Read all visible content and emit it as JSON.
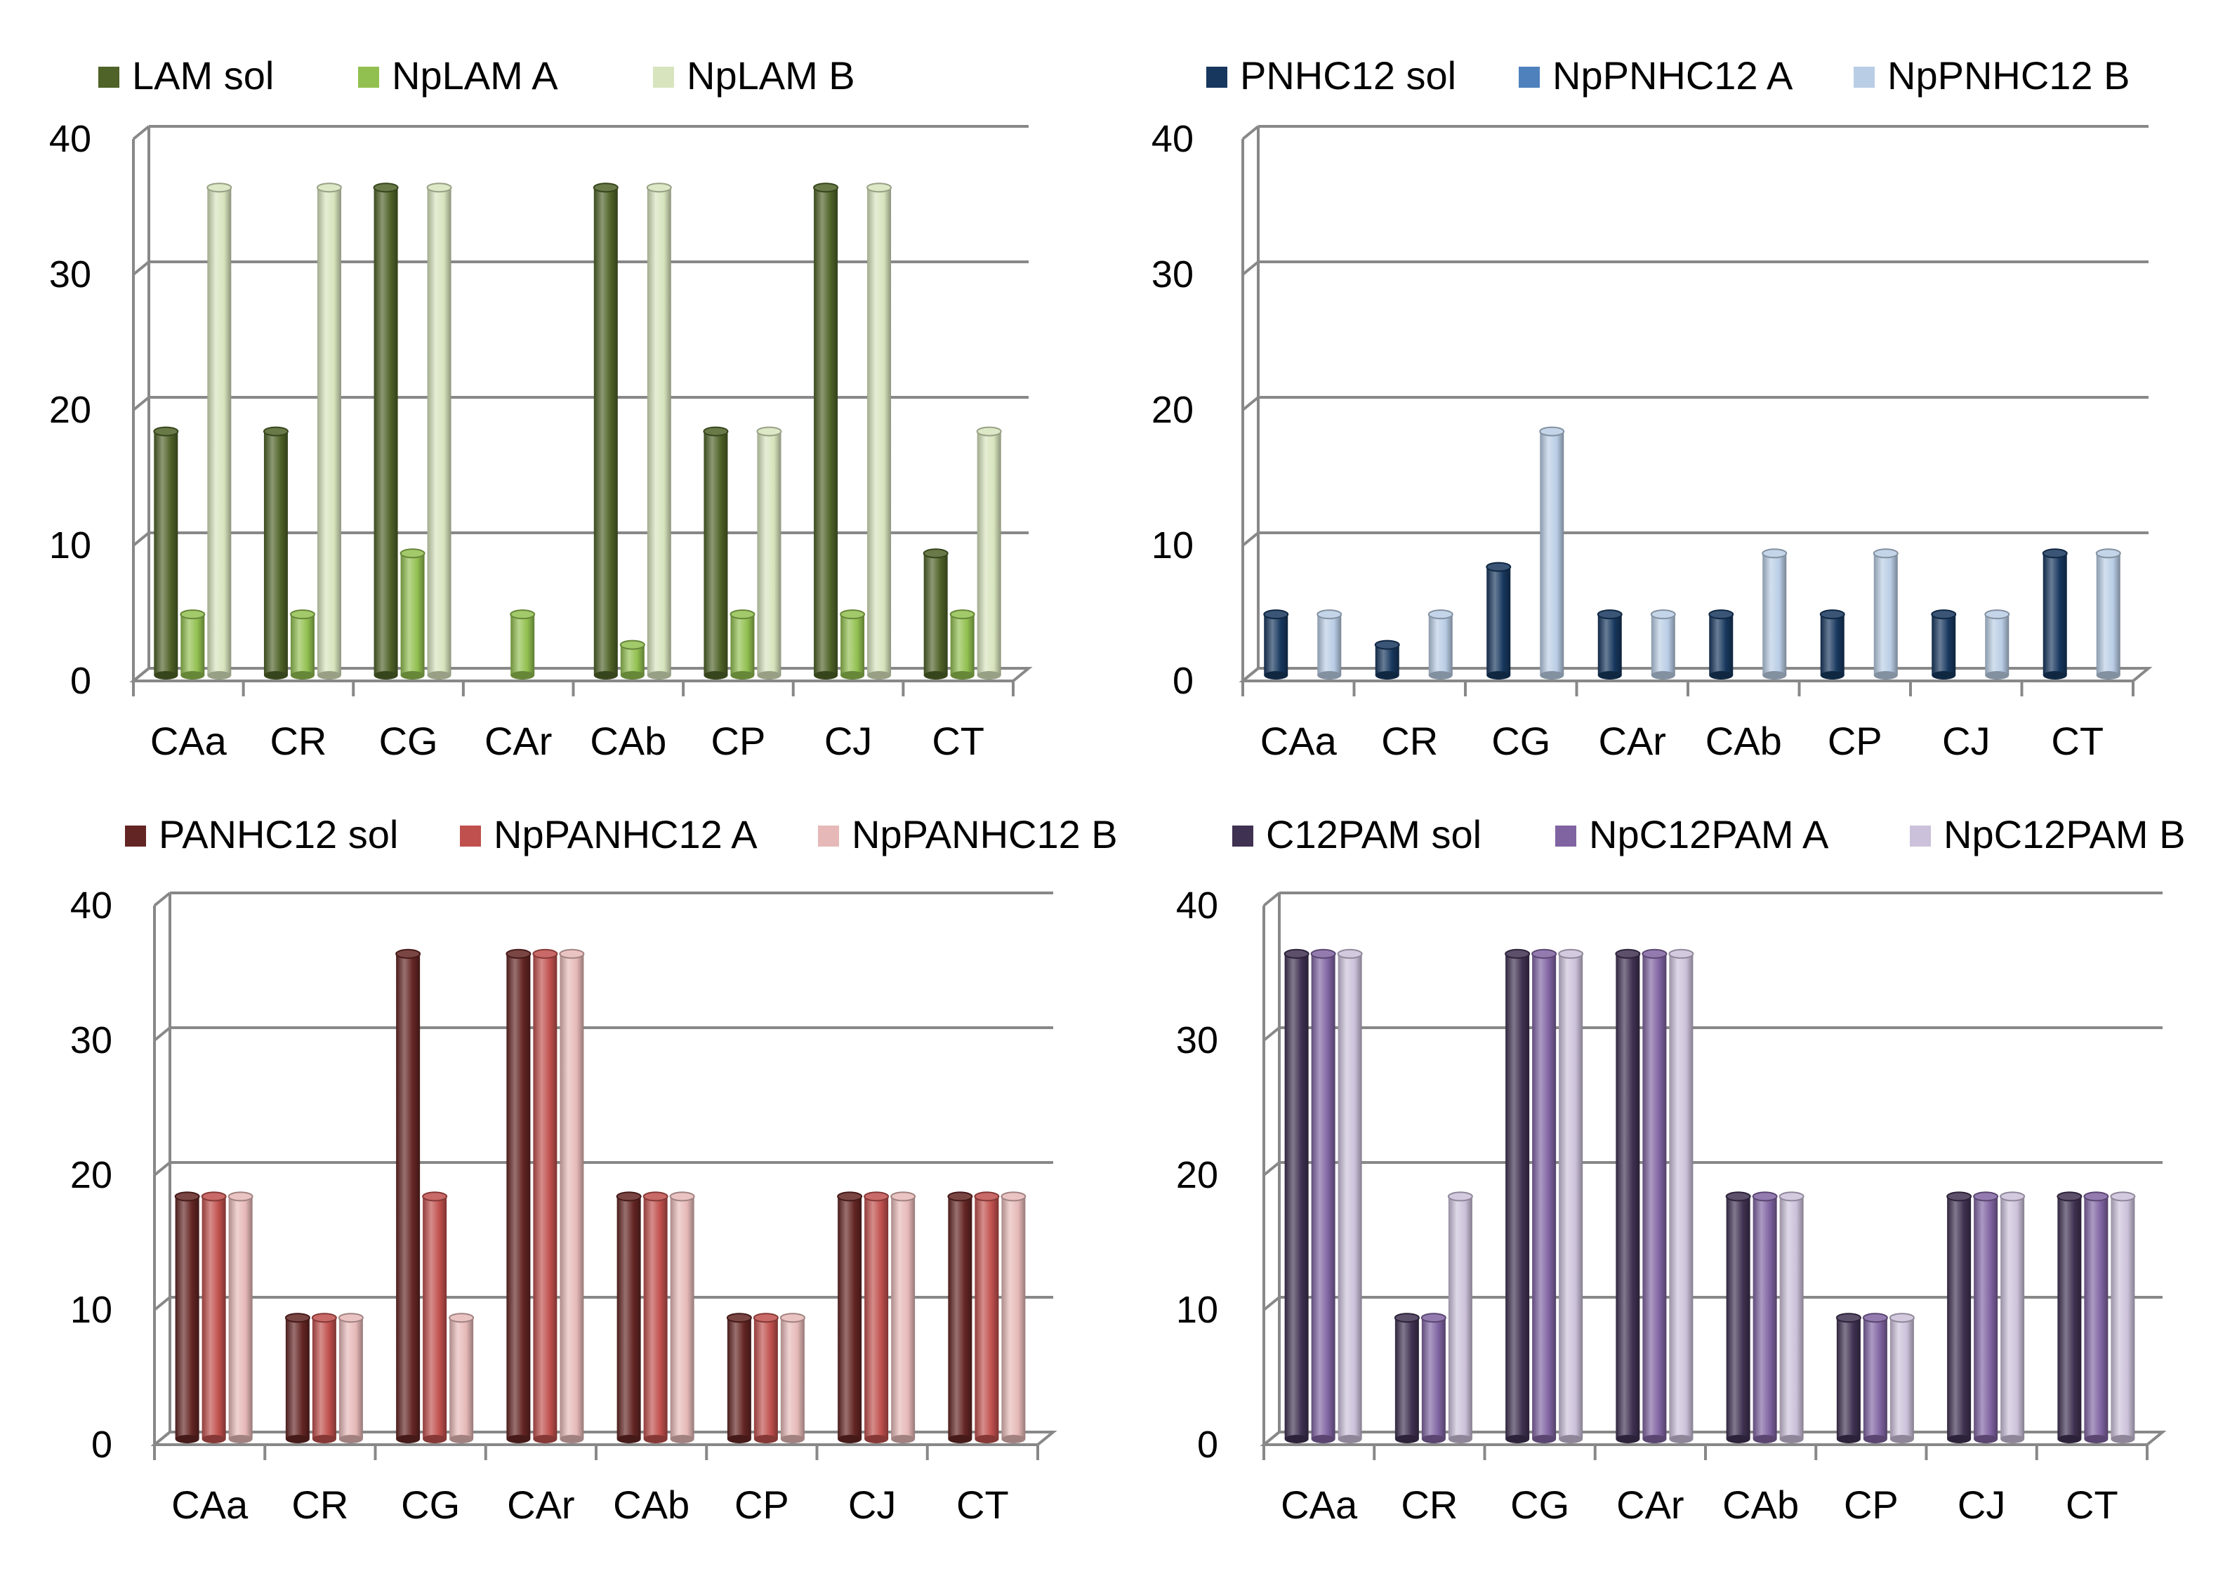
{
  "chart_data": [
    {
      "type": "bar",
      "title": "",
      "xlabel": "",
      "ylabel": "",
      "ylim": [
        0,
        40
      ],
      "yticks": [
        "0",
        "10",
        "20",
        "30",
        "40"
      ],
      "grid": true,
      "legend": "top",
      "categories": [
        "CAa",
        "CR",
        "CG",
        "CAr",
        "CAb",
        "CP",
        "CJ",
        "CT"
      ],
      "series": [
        {
          "name": "LAM sol",
          "color": "#4f6228",
          "values": [
            18,
            18,
            36,
            0,
            36,
            18,
            36,
            9
          ]
        },
        {
          "name": "NpLAM A",
          "color": "#92c050",
          "values": [
            4.5,
            4.5,
            9,
            4.5,
            2.25,
            4.5,
            4.5,
            4.5
          ]
        },
        {
          "name": "NpLAM B",
          "color": "#d7e4bd",
          "values": [
            36,
            36,
            36,
            0,
            36,
            18,
            36,
            18
          ]
        }
      ]
    },
    {
      "type": "bar",
      "title": "",
      "xlabel": "",
      "ylabel": "",
      "ylim": [
        0,
        40
      ],
      "yticks": [
        "0",
        "10",
        "20",
        "30",
        "40"
      ],
      "grid": true,
      "legend": "top",
      "categories": [
        "CAa",
        "CR",
        "CG",
        "CAr",
        "CAb",
        "CP",
        "CJ",
        "CT"
      ],
      "series": [
        {
          "name": "PNHC12 sol",
          "color": "#17375e",
          "values": [
            4.5,
            2.25,
            8,
            4.5,
            4.5,
            4.5,
            4.5,
            9
          ]
        },
        {
          "name": "NpPNHC12 A",
          "color": "#4f81bd",
          "values": [
            0,
            0,
            0,
            0,
            0,
            0,
            0,
            0
          ]
        },
        {
          "name": "NpPNHC12 B",
          "color": "#b9cde5",
          "values": [
            4.5,
            4.5,
            18,
            4.5,
            9,
            9,
            4.5,
            9
          ]
        }
      ]
    },
    {
      "type": "bar",
      "title": "",
      "xlabel": "",
      "ylabel": "",
      "ylim": [
        0,
        40
      ],
      "yticks": [
        "0",
        "10",
        "20",
        "30",
        "40"
      ],
      "grid": true,
      "legend": "top",
      "categories": [
        "CAa",
        "CR",
        "CG",
        "CAr",
        "CAb",
        "CP",
        "CJ",
        "CT"
      ],
      "series": [
        {
          "name": "PANHC12 sol",
          "color": "#632523",
          "values": [
            18,
            9,
            36,
            36,
            18,
            9,
            18,
            18
          ]
        },
        {
          "name": "NpPANHC12 A",
          "color": "#c0504d",
          "values": [
            18,
            9,
            18,
            36,
            18,
            9,
            18,
            18
          ]
        },
        {
          "name": "NpPANHC12 B",
          "color": "#e6b9b8",
          "values": [
            18,
            9,
            9,
            36,
            18,
            9,
            18,
            18
          ]
        }
      ]
    },
    {
      "type": "bar",
      "title": "",
      "xlabel": "",
      "ylabel": "",
      "ylim": [
        0,
        40
      ],
      "yticks": [
        "0",
        "10",
        "20",
        "30",
        "40"
      ],
      "grid": true,
      "legend": "top",
      "categories": [
        "CAa",
        "CR",
        "CG",
        "CAr",
        "CAb",
        "CP",
        "CJ",
        "CT"
      ],
      "series": [
        {
          "name": "C12PAM sol",
          "color": "#3f3151",
          "values": [
            36,
            9,
            36,
            36,
            18,
            9,
            18,
            18
          ]
        },
        {
          "name": "NpC12PAM A",
          "color": "#8064a2",
          "values": [
            36,
            9,
            36,
            36,
            18,
            9,
            18,
            18
          ]
        },
        {
          "name": "NpC12PAM B",
          "color": "#ccc1da",
          "values": [
            36,
            18,
            36,
            36,
            18,
            9,
            18,
            18
          ]
        }
      ]
    }
  ]
}
